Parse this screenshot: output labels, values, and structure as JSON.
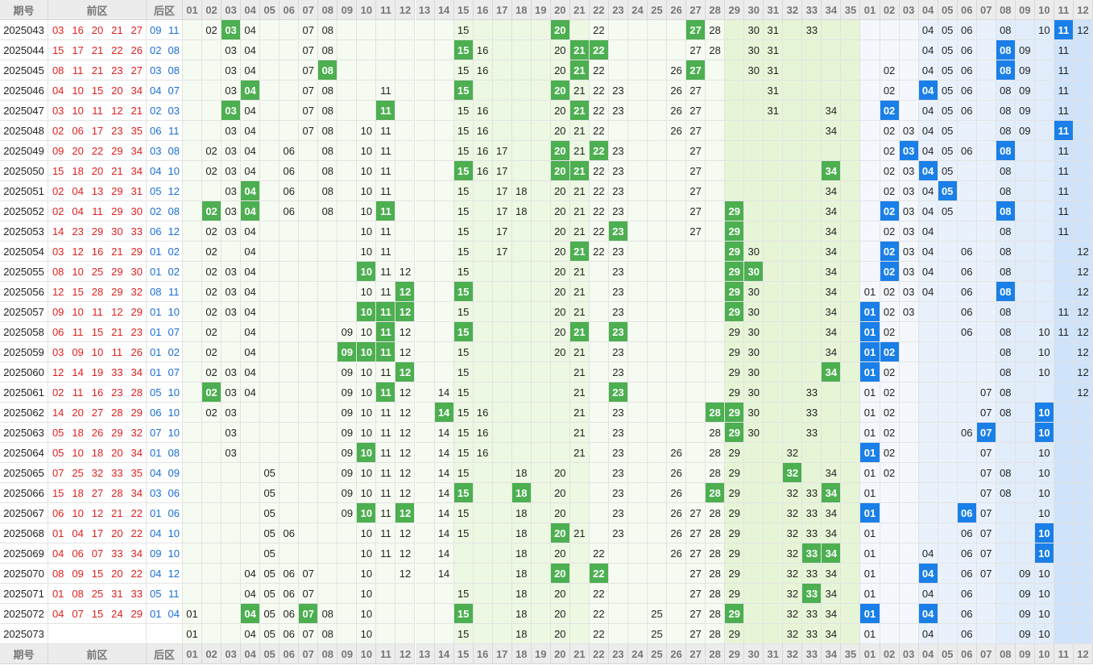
{
  "header": {
    "issue": "期号",
    "front": "前区",
    "back": "后区",
    "front_cols": [
      "01",
      "02",
      "03",
      "04",
      "05",
      "06",
      "07",
      "08",
      "09",
      "10",
      "11",
      "12",
      "13",
      "14",
      "15",
      "16",
      "17",
      "18",
      "19",
      "20",
      "21",
      "22",
      "23",
      "24",
      "25",
      "26",
      "27",
      "28",
      "29",
      "30",
      "31",
      "32",
      "33",
      "34",
      "35"
    ],
    "back_cols": [
      "01",
      "02",
      "03",
      "04",
      "05",
      "06",
      "07",
      "08",
      "09",
      "10",
      "11",
      "12"
    ]
  },
  "rows": [
    {
      "issue": "2025043",
      "front": [
        "03",
        "16",
        "20",
        "21",
        "27"
      ],
      "back": [
        "09",
        "11"
      ],
      "front_trend": [
        "02",
        "03",
        "04",
        "07",
        "08",
        "15",
        "20",
        "22",
        "27",
        "28",
        "30",
        "31",
        "33"
      ],
      "back_trend": [
        "04",
        "05",
        "06",
        "08",
        "10",
        "11",
        "12"
      ]
    },
    {
      "issue": "2025044",
      "front": [
        "15",
        "17",
        "21",
        "22",
        "26"
      ],
      "back": [
        "02",
        "08"
      ],
      "front_trend": [
        "03",
        "04",
        "07",
        "08",
        "15",
        "16",
        "20",
        "21",
        "22",
        "27",
        "28",
        "30",
        "31"
      ],
      "back_trend": [
        "04",
        "05",
        "06",
        "08",
        "09",
        "11"
      ]
    },
    {
      "issue": "2025045",
      "front": [
        "08",
        "11",
        "21",
        "23",
        "27"
      ],
      "back": [
        "03",
        "08"
      ],
      "front_trend": [
        "03",
        "04",
        "07",
        "08",
        "15",
        "16",
        "20",
        "21",
        "22",
        "26",
        "27",
        "30",
        "31"
      ],
      "back_trend": [
        "02",
        "04",
        "05",
        "06",
        "08",
        "09",
        "11"
      ]
    },
    {
      "issue": "2025046",
      "front": [
        "04",
        "10",
        "15",
        "20",
        "34"
      ],
      "back": [
        "04",
        "07"
      ],
      "front_trend": [
        "03",
        "04",
        "07",
        "08",
        "11",
        "15",
        "20",
        "21",
        "22",
        "23",
        "26",
        "27",
        "31"
      ],
      "back_trend": [
        "02",
        "04",
        "05",
        "06",
        "08",
        "09",
        "11"
      ]
    },
    {
      "issue": "2025047",
      "front": [
        "03",
        "10",
        "11",
        "12",
        "21"
      ],
      "back": [
        "02",
        "03"
      ],
      "front_trend": [
        "03",
        "04",
        "07",
        "08",
        "11",
        "15",
        "16",
        "20",
        "21",
        "22",
        "23",
        "26",
        "27",
        "31",
        "34"
      ],
      "back_trend": [
        "02",
        "04",
        "05",
        "06",
        "08",
        "09",
        "11"
      ]
    },
    {
      "issue": "2025048",
      "front": [
        "02",
        "06",
        "17",
        "23",
        "35"
      ],
      "back": [
        "06",
        "11"
      ],
      "front_trend": [
        "03",
        "04",
        "07",
        "08",
        "10",
        "11",
        "15",
        "16",
        "20",
        "21",
        "22",
        "26",
        "27",
        "34"
      ],
      "back_trend": [
        "02",
        "03",
        "04",
        "05",
        "08",
        "09",
        "11"
      ]
    },
    {
      "issue": "2025049",
      "front": [
        "09",
        "20",
        "22",
        "29",
        "34"
      ],
      "back": [
        "03",
        "08"
      ],
      "front_trend": [
        "02",
        "03",
        "04",
        "06",
        "08",
        "10",
        "11",
        "15",
        "16",
        "17",
        "20",
        "21",
        "22",
        "23",
        "27"
      ],
      "back_trend": [
        "02",
        "03",
        "04",
        "05",
        "06",
        "08",
        "11"
      ]
    },
    {
      "issue": "2025050",
      "front": [
        "15",
        "18",
        "20",
        "21",
        "34"
      ],
      "back": [
        "04",
        "10"
      ],
      "front_trend": [
        "02",
        "03",
        "04",
        "06",
        "08",
        "10",
        "11",
        "15",
        "16",
        "17",
        "20",
        "21",
        "22",
        "23",
        "27",
        "34"
      ],
      "back_trend": [
        "02",
        "03",
        "04",
        "05",
        "08",
        "11"
      ]
    },
    {
      "issue": "2025051",
      "front": [
        "02",
        "04",
        "13",
        "29",
        "31"
      ],
      "back": [
        "05",
        "12"
      ],
      "front_trend": [
        "03",
        "04",
        "06",
        "08",
        "10",
        "11",
        "15",
        "17",
        "18",
        "20",
        "21",
        "22",
        "23",
        "27",
        "34"
      ],
      "back_trend": [
        "02",
        "03",
        "04",
        "05",
        "08",
        "11"
      ]
    },
    {
      "issue": "2025052",
      "front": [
        "02",
        "04",
        "11",
        "29",
        "30"
      ],
      "back": [
        "02",
        "08"
      ],
      "front_trend": [
        "02",
        "03",
        "04",
        "06",
        "08",
        "10",
        "11",
        "15",
        "17",
        "18",
        "20",
        "21",
        "22",
        "23",
        "27",
        "29",
        "34"
      ],
      "back_trend": [
        "02",
        "03",
        "04",
        "05",
        "08",
        "11"
      ]
    },
    {
      "issue": "2025053",
      "front": [
        "14",
        "23",
        "29",
        "30",
        "33"
      ],
      "back": [
        "06",
        "12"
      ],
      "front_trend": [
        "02",
        "03",
        "04",
        "10",
        "11",
        "15",
        "17",
        "20",
        "21",
        "22",
        "23",
        "27",
        "29",
        "34"
      ],
      "back_trend": [
        "02",
        "03",
        "04",
        "08",
        "11"
      ]
    },
    {
      "issue": "2025054",
      "front": [
        "03",
        "12",
        "16",
        "21",
        "29"
      ],
      "back": [
        "01",
        "02"
      ],
      "front_trend": [
        "02",
        "04",
        "10",
        "11",
        "15",
        "17",
        "20",
        "21",
        "22",
        "23",
        "29",
        "30",
        "34"
      ],
      "back_trend": [
        "02",
        "03",
        "04",
        "06",
        "08",
        "12"
      ]
    },
    {
      "issue": "2025055",
      "front": [
        "08",
        "10",
        "25",
        "29",
        "30"
      ],
      "back": [
        "01",
        "02"
      ],
      "front_trend": [
        "02",
        "03",
        "04",
        "10",
        "11",
        "12",
        "15",
        "20",
        "21",
        "23",
        "29",
        "30",
        "34"
      ],
      "back_trend": [
        "02",
        "03",
        "04",
        "06",
        "08",
        "12"
      ]
    },
    {
      "issue": "2025056",
      "front": [
        "12",
        "15",
        "28",
        "29",
        "32"
      ],
      "back": [
        "08",
        "11"
      ],
      "front_trend": [
        "02",
        "03",
        "04",
        "10",
        "11",
        "12",
        "15",
        "20",
        "21",
        "23",
        "29",
        "30",
        "34"
      ],
      "back_trend": [
        "01",
        "02",
        "03",
        "04",
        "06",
        "08",
        "12"
      ]
    },
    {
      "issue": "2025057",
      "front": [
        "09",
        "10",
        "11",
        "12",
        "29"
      ],
      "back": [
        "01",
        "10"
      ],
      "front_trend": [
        "02",
        "03",
        "04",
        "10",
        "11",
        "12",
        "15",
        "20",
        "21",
        "23",
        "29",
        "30",
        "34"
      ],
      "back_trend": [
        "01",
        "02",
        "03",
        "06",
        "08",
        "11",
        "12"
      ]
    },
    {
      "issue": "2025058",
      "front": [
        "06",
        "11",
        "15",
        "21",
        "23"
      ],
      "back": [
        "01",
        "07"
      ],
      "front_trend": [
        "02",
        "04",
        "09",
        "10",
        "11",
        "12",
        "15",
        "20",
        "21",
        "23",
        "29",
        "30",
        "34"
      ],
      "back_trend": [
        "01",
        "02",
        "06",
        "08",
        "10",
        "11",
        "12"
      ]
    },
    {
      "issue": "2025059",
      "front": [
        "03",
        "09",
        "10",
        "11",
        "26"
      ],
      "back": [
        "01",
        "02"
      ],
      "front_trend": [
        "02",
        "04",
        "09",
        "10",
        "11",
        "12",
        "15",
        "20",
        "21",
        "23",
        "29",
        "30",
        "34"
      ],
      "back_trend": [
        "01",
        "02",
        "08",
        "10",
        "12"
      ]
    },
    {
      "issue": "2025060",
      "front": [
        "12",
        "14",
        "19",
        "33",
        "34"
      ],
      "back": [
        "01",
        "07"
      ],
      "front_trend": [
        "02",
        "03",
        "04",
        "09",
        "10",
        "11",
        "12",
        "15",
        "21",
        "23",
        "29",
        "30",
        "34"
      ],
      "back_trend": [
        "01",
        "02",
        "08",
        "10",
        "12"
      ]
    },
    {
      "issue": "2025061",
      "front": [
        "02",
        "11",
        "16",
        "23",
        "28"
      ],
      "back": [
        "05",
        "10"
      ],
      "front_trend": [
        "02",
        "03",
        "04",
        "09",
        "10",
        "11",
        "12",
        "14",
        "15",
        "21",
        "23",
        "29",
        "30",
        "33"
      ],
      "back_trend": [
        "01",
        "02",
        "07",
        "08",
        "12"
      ]
    },
    {
      "issue": "2025062",
      "front": [
        "14",
        "20",
        "27",
        "28",
        "29"
      ],
      "back": [
        "06",
        "10"
      ],
      "front_trend": [
        "02",
        "03",
        "09",
        "10",
        "11",
        "12",
        "14",
        "15",
        "16",
        "21",
        "23",
        "28",
        "29",
        "30",
        "33"
      ],
      "back_trend": [
        "01",
        "02",
        "07",
        "08",
        "10"
      ]
    },
    {
      "issue": "2025063",
      "front": [
        "05",
        "18",
        "26",
        "29",
        "32"
      ],
      "back": [
        "07",
        "10"
      ],
      "front_trend": [
        "03",
        "09",
        "10",
        "11",
        "12",
        "14",
        "15",
        "16",
        "21",
        "23",
        "28",
        "29",
        "30",
        "33"
      ],
      "back_trend": [
        "01",
        "02",
        "06",
        "07",
        "10"
      ]
    },
    {
      "issue": "2025064",
      "front": [
        "05",
        "10",
        "18",
        "20",
        "34"
      ],
      "back": [
        "01",
        "08"
      ],
      "front_trend": [
        "03",
        "09",
        "10",
        "11",
        "12",
        "14",
        "15",
        "16",
        "21",
        "23",
        "26",
        "28",
        "29",
        "32"
      ],
      "back_trend": [
        "01",
        "02",
        "07",
        "10"
      ]
    },
    {
      "issue": "2025065",
      "front": [
        "07",
        "25",
        "32",
        "33",
        "35"
      ],
      "back": [
        "04",
        "09"
      ],
      "front_trend": [
        "05",
        "09",
        "10",
        "11",
        "12",
        "14",
        "15",
        "18",
        "20",
        "23",
        "26",
        "28",
        "29",
        "32",
        "34"
      ],
      "back_trend": [
        "01",
        "02",
        "07",
        "08",
        "10"
      ]
    },
    {
      "issue": "2025066",
      "front": [
        "15",
        "18",
        "27",
        "28",
        "34"
      ],
      "back": [
        "03",
        "06"
      ],
      "front_trend": [
        "05",
        "09",
        "10",
        "11",
        "12",
        "14",
        "15",
        "18",
        "20",
        "23",
        "26",
        "28",
        "29",
        "32",
        "33",
        "34"
      ],
      "back_trend": [
        "01",
        "07",
        "08",
        "10"
      ]
    },
    {
      "issue": "2025067",
      "front": [
        "06",
        "10",
        "12",
        "21",
        "22"
      ],
      "back": [
        "01",
        "06"
      ],
      "front_trend": [
        "05",
        "09",
        "10",
        "11",
        "12",
        "14",
        "15",
        "18",
        "20",
        "23",
        "26",
        "27",
        "28",
        "29",
        "32",
        "33",
        "34"
      ],
      "back_trend": [
        "01",
        "06",
        "07",
        "10"
      ]
    },
    {
      "issue": "2025068",
      "front": [
        "01",
        "04",
        "17",
        "20",
        "22"
      ],
      "back": [
        "04",
        "10"
      ],
      "front_trend": [
        "05",
        "06",
        "10",
        "11",
        "12",
        "14",
        "15",
        "18",
        "20",
        "21",
        "23",
        "26",
        "27",
        "28",
        "29",
        "32",
        "33",
        "34"
      ],
      "back_trend": [
        "01",
        "06",
        "07",
        "10"
      ]
    },
    {
      "issue": "2025069",
      "front": [
        "04",
        "06",
        "07",
        "33",
        "34"
      ],
      "back": [
        "09",
        "10"
      ],
      "front_trend": [
        "05",
        "10",
        "11",
        "12",
        "14",
        "18",
        "20",
        "22",
        "26",
        "27",
        "28",
        "29",
        "32",
        "33",
        "34"
      ],
      "back_trend": [
        "01",
        "04",
        "06",
        "07",
        "10"
      ]
    },
    {
      "issue": "2025070",
      "front": [
        "08",
        "09",
        "15",
        "20",
        "22"
      ],
      "back": [
        "04",
        "12"
      ],
      "front_trend": [
        "04",
        "05",
        "06",
        "07",
        "10",
        "12",
        "14",
        "18",
        "20",
        "22",
        "27",
        "28",
        "29",
        "32",
        "33",
        "34"
      ],
      "back_trend": [
        "01",
        "04",
        "06",
        "07",
        "09",
        "10"
      ]
    },
    {
      "issue": "2025071",
      "front": [
        "01",
        "08",
        "25",
        "31",
        "33"
      ],
      "back": [
        "05",
        "11"
      ],
      "front_trend": [
        "04",
        "05",
        "06",
        "07",
        "10",
        "15",
        "18",
        "20",
        "22",
        "27",
        "28",
        "29",
        "32",
        "33",
        "34"
      ],
      "back_trend": [
        "01",
        "04",
        "06",
        "09",
        "10"
      ]
    },
    {
      "issue": "2025072",
      "front": [
        "04",
        "07",
        "15",
        "24",
        "29"
      ],
      "back": [
        "01",
        "04"
      ],
      "front_trend": [
        "01",
        "04",
        "05",
        "06",
        "07",
        "08",
        "10",
        "15",
        "18",
        "20",
        "22",
        "25",
        "27",
        "28",
        "29",
        "32",
        "33",
        "34"
      ],
      "back_trend": [
        "01",
        "04",
        "06",
        "09",
        "10"
      ]
    },
    {
      "issue": "2025073",
      "front": [],
      "back": [],
      "front_trend": [
        "01",
        "04",
        "05",
        "06",
        "07",
        "08",
        "10",
        "15",
        "18",
        "20",
        "22",
        "25",
        "27",
        "28",
        "29",
        "32",
        "33",
        "34"
      ],
      "back_trend": [
        "01",
        "04",
        "06",
        "09",
        "10"
      ]
    }
  ]
}
